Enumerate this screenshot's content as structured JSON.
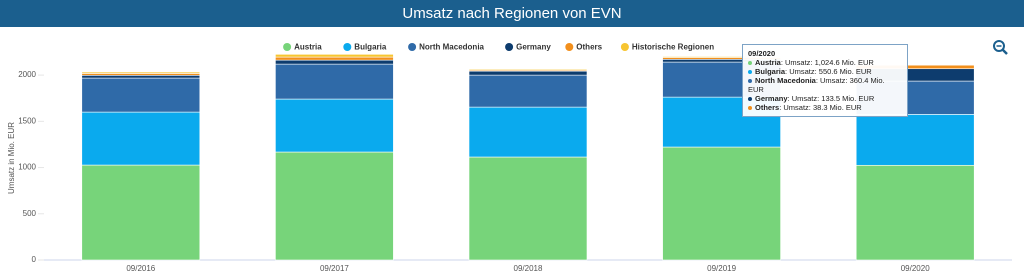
{
  "chart_data": {
    "type": "stacked_bar",
    "title": "Umsatz nach Regionen von EVN",
    "y_label": "Umsatz in Mio. EUR",
    "categories": [
      "09/2016",
      "09/2017",
      "09/2018",
      "09/2019",
      "09/2020"
    ],
    "series": [
      {
        "name": "Austria",
        "color": "#77d47a",
        "values": [
          1027,
          1168,
          1114,
          1222,
          1024.6
        ]
      },
      {
        "name": "Bulgaria",
        "color": "#0aaaee",
        "values": [
          573,
          573,
          540,
          540,
          550.6
        ]
      },
      {
        "name": "North Macedonia",
        "color": "#2f6aa8",
        "values": [
          368,
          378,
          346,
          379,
          360.4
        ]
      },
      {
        "name": "Germany",
        "color": "#0d3c6e",
        "values": [
          30,
          43,
          43,
          30,
          133.5
        ]
      },
      {
        "name": "Others",
        "color": "#f28f1c",
        "values": [
          20,
          33,
          11,
          20,
          38.3
        ]
      },
      {
        "name": "Historische Regionen",
        "color": "#f7c531",
        "values": [
          15,
          30,
          10,
          10,
          null
        ]
      }
    ],
    "ylim": [
      0,
      2250
    ],
    "yticks": [
      0,
      500,
      1000,
      1500,
      2000
    ],
    "grid": false,
    "tooltip": {
      "title": "09/2020",
      "category_index": 4,
      "items": [
        {
          "series_index": 0,
          "label": "Umsatz: 1,024.6 Mio. EUR"
        },
        {
          "series_index": 1,
          "label": "Umsatz: 550.6 Mio. EUR"
        },
        {
          "series_index": 2,
          "label": "Umsatz: 360.4 Mio. EUR"
        },
        {
          "series_index": 3,
          "label": "Umsatz: 133.5 Mio. EUR"
        },
        {
          "series_index": 4,
          "label": "Umsatz: 38.3 Mio. EUR"
        }
      ]
    }
  }
}
